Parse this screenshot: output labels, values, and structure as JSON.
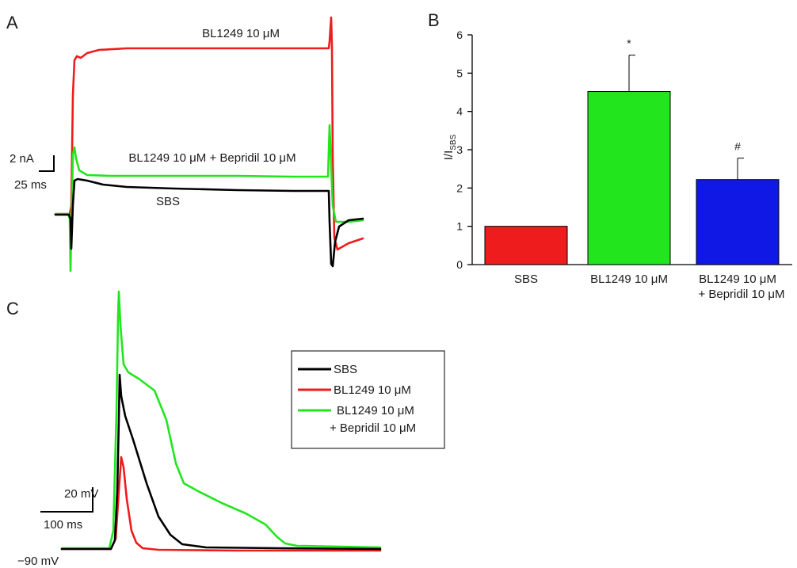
{
  "colors": {
    "sbs": "#000000",
    "bl1249": "#ee1c1c",
    "bepridil": "#22e51e",
    "bar_blue": "#1018e6"
  },
  "panel_a": {
    "letter": "A",
    "labels": {
      "bl1249": "BL1249 10 μM",
      "combo": "BL1249 10 μM + Bepridil 10 μM",
      "sbs": "SBS"
    },
    "scale": {
      "current": "2 nA",
      "time": "25 ms"
    }
  },
  "chart_data": [
    {
      "panel": "B",
      "type": "bar",
      "title": "",
      "ylabel": "I/I",
      "ylabel_sub": "SBS",
      "ylim": [
        0,
        6
      ],
      "yticks": [
        0,
        1,
        2,
        3,
        4,
        5,
        6
      ],
      "categories": [
        "SBS",
        "BL1249 10 μM",
        "BL1249 10 μM\n+ Bepridil 10 μM"
      ],
      "values": [
        1.0,
        4.52,
        2.22
      ],
      "errors": [
        0,
        0.95,
        0.56
      ],
      "significance": [
        "",
        "*",
        "#"
      ],
      "bar_colors": [
        "#ee1c1c",
        "#22e51e",
        "#1018e6"
      ]
    }
  ],
  "panel_c": {
    "letter": "C",
    "legend": [
      {
        "label": "SBS",
        "color": "#000000"
      },
      {
        "label": "BL1249 10 μM",
        "color": "#ee1c1c"
      },
      {
        "label": "BL1249 10 μM",
        "label2": "+ Bepridil 10 μM",
        "color": "#22e51e"
      }
    ],
    "scale": {
      "voltage": "20 mV",
      "time": "100 ms"
    },
    "baseline": "−90 mV"
  }
}
